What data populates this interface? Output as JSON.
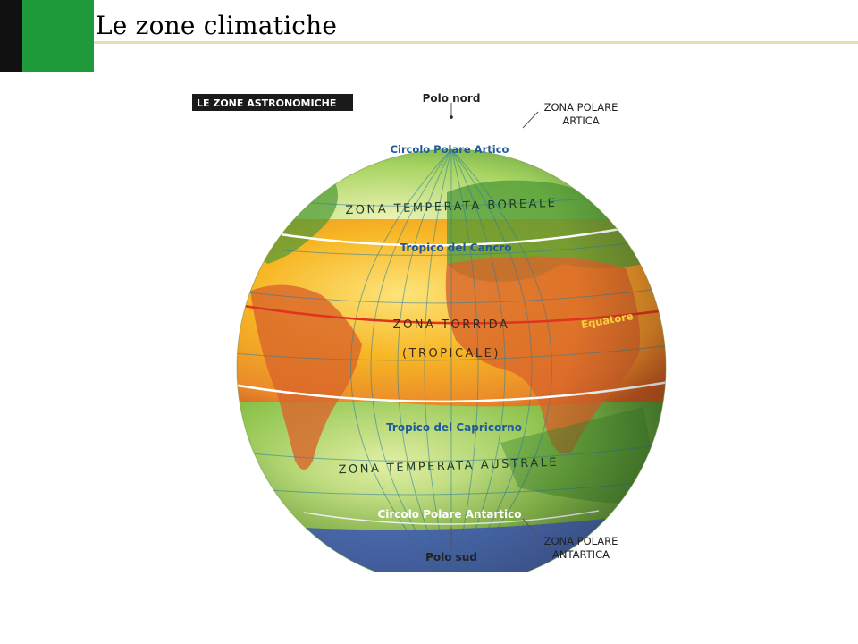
{
  "slide": {
    "title": "Le zone climatiche",
    "accent_colors": {
      "black": "#111111",
      "green": "#1f9a3b",
      "rule": "#e8dfae"
    }
  },
  "figure": {
    "banner": "LE ZONE ASTRONOMICHE",
    "labels": {
      "north_pole": "Polo nord",
      "south_pole": "Polo sud",
      "arctic_circle": "Circolo Polare Artico",
      "antarctic_circle": "Circolo Polare Antartico",
      "tropic_cancer": "Tropico del Cancro",
      "tropic_capricorn": "Tropico del Capricorno",
      "equator": "Equatore",
      "north_temperate": "ZONA TEMPERATA BOREALE",
      "south_temperate": "ZONA TEMPERATA AUSTRALE",
      "torrid_1": "ZONA TORRIDA",
      "torrid_2": "(TROPICALE)",
      "arctic_zone_1": "ZONA POLARE",
      "arctic_zone_2": "ARTICA",
      "antarctic_zone_1": "ZONA POLARE",
      "antarctic_zone_2": "ANTARTICA"
    },
    "zone_colors": {
      "polar": "#b9d3ef",
      "temperate": "#8cc63f",
      "torrid": "#f6b92b",
      "torrid_shade": "#e2712d",
      "equator_line": "#e0341e",
      "label_blue": "#1f5a99"
    }
  }
}
